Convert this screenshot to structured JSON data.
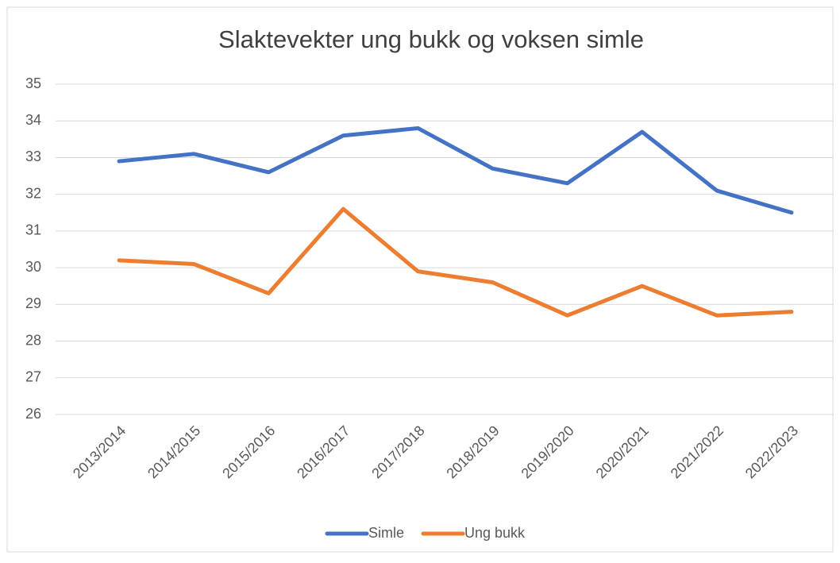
{
  "chart_data": {
    "type": "line",
    "title": "Slaktevekter ung bukk og voksen simle",
    "categories": [
      "2013/2014",
      "2014/2015",
      "2015/2016",
      "2016/2017",
      "2017/2018",
      "2018/2019",
      "2019/2020",
      "2020/2021",
      "2021/2022",
      "2022/2023"
    ],
    "series": [
      {
        "name": "Simle",
        "color": "#4472c4",
        "values": [
          32.9,
          33.1,
          32.6,
          33.6,
          33.8,
          32.7,
          32.3,
          33.7,
          32.1,
          31.5
        ]
      },
      {
        "name": "Ung bukk",
        "color": "#ed7d31",
        "values": [
          30.2,
          30.1,
          29.3,
          31.6,
          29.9,
          29.6,
          28.7,
          29.5,
          28.7,
          28.8
        ]
      }
    ],
    "ylim": [
      26,
      35
    ],
    "yticks": [
      26,
      27,
      28,
      29,
      30,
      31,
      32,
      33,
      34,
      35
    ],
    "grid": true,
    "legend": "bottom"
  }
}
